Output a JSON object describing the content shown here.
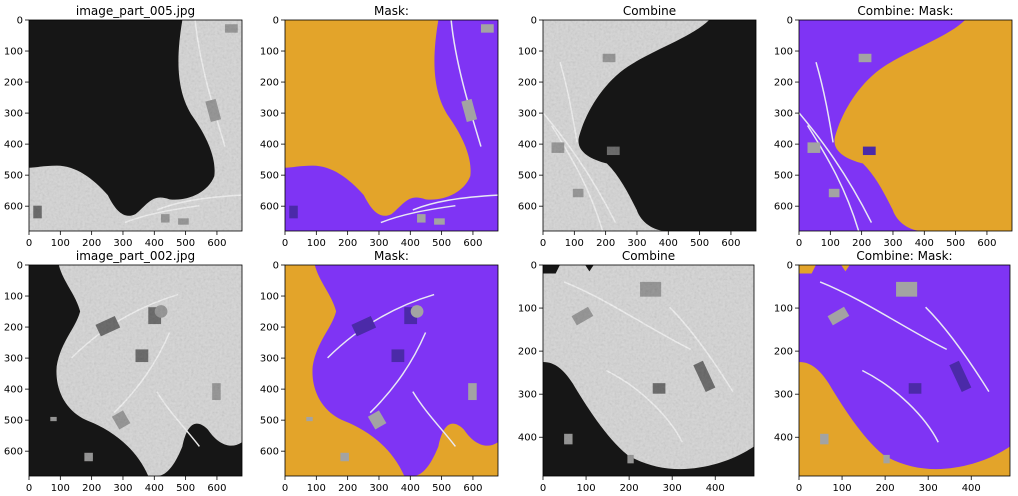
{
  "figure": {
    "colors": {
      "dark_water": "#191815",
      "mask_purple": "#7f34f4",
      "mask_orange": "#e3a42a",
      "mask_gray": "#a3a3a3",
      "mask_dark": "#4b2aa8",
      "aerial_light": "#d9d9d9",
      "aerial_mid": "#9a9a9a"
    },
    "panels": [
      {
        "title": "image_part_005.jpg",
        "kind": "aerial",
        "scene": "top",
        "chart_data": {
          "type": "image",
          "xlim": [
            0,
            680
          ],
          "ylim": [
            680,
            0
          ],
          "xticks": [
            0,
            100,
            200,
            300,
            400,
            500,
            600
          ],
          "yticks": [
            0,
            100,
            200,
            300,
            400,
            500,
            600
          ]
        }
      },
      {
        "title": "Mask:",
        "kind": "mask",
        "scene": "top",
        "chart_data": {
          "type": "image",
          "xlim": [
            0,
            680
          ],
          "ylim": [
            680,
            0
          ],
          "xticks": [
            0,
            100,
            200,
            300,
            400,
            500,
            600
          ],
          "yticks": [
            0,
            100,
            200,
            300,
            400,
            500,
            600
          ]
        }
      },
      {
        "title": "Combine",
        "kind": "aerial",
        "scene": "top-flipped",
        "chart_data": {
          "type": "image",
          "xlim": [
            0,
            680
          ],
          "ylim": [
            680,
            0
          ],
          "xticks": [
            0,
            100,
            200,
            300,
            400,
            500,
            600
          ],
          "yticks": [
            0,
            100,
            200,
            300,
            400,
            500,
            600
          ]
        }
      },
      {
        "title": "Combine: Mask:",
        "kind": "mask",
        "scene": "top-flipped",
        "chart_data": {
          "type": "image",
          "xlim": [
            0,
            680
          ],
          "ylim": [
            680,
            0
          ],
          "xticks": [
            0,
            100,
            200,
            300,
            400,
            500,
            600
          ],
          "yticks": [
            0,
            100,
            200,
            300,
            400,
            500,
            600
          ]
        }
      },
      {
        "title": "image_part_002.jpg",
        "kind": "aerial",
        "scene": "bottom",
        "chart_data": {
          "type": "image",
          "xlim": [
            0,
            680
          ],
          "ylim": [
            680,
            0
          ],
          "xticks": [
            0,
            100,
            200,
            300,
            400,
            500,
            600
          ],
          "yticks": [
            0,
            100,
            200,
            300,
            400,
            500,
            600
          ]
        }
      },
      {
        "title": "Mask:",
        "kind": "mask",
        "scene": "bottom",
        "chart_data": {
          "type": "image",
          "xlim": [
            0,
            680
          ],
          "ylim": [
            680,
            0
          ],
          "xticks": [
            0,
            100,
            200,
            300,
            400,
            500,
            600
          ],
          "yticks": [
            0,
            100,
            200,
            300,
            400,
            500,
            600
          ]
        }
      },
      {
        "title": "Combine",
        "kind": "aerial",
        "scene": "bottom-crop",
        "chart_data": {
          "type": "image",
          "xlim": [
            0,
            490
          ],
          "ylim": [
            490,
            0
          ],
          "xticks": [
            0,
            100,
            200,
            300,
            400
          ],
          "yticks": [
            0,
            100,
            200,
            300,
            400
          ]
        }
      },
      {
        "title": "Combine: Mask:",
        "kind": "mask",
        "scene": "bottom-crop",
        "chart_data": {
          "type": "image",
          "xlim": [
            0,
            490
          ],
          "ylim": [
            490,
            0
          ],
          "xticks": [
            0,
            100,
            200,
            300,
            400
          ],
          "yticks": [
            0,
            100,
            200,
            300,
            400
          ]
        }
      }
    ]
  }
}
